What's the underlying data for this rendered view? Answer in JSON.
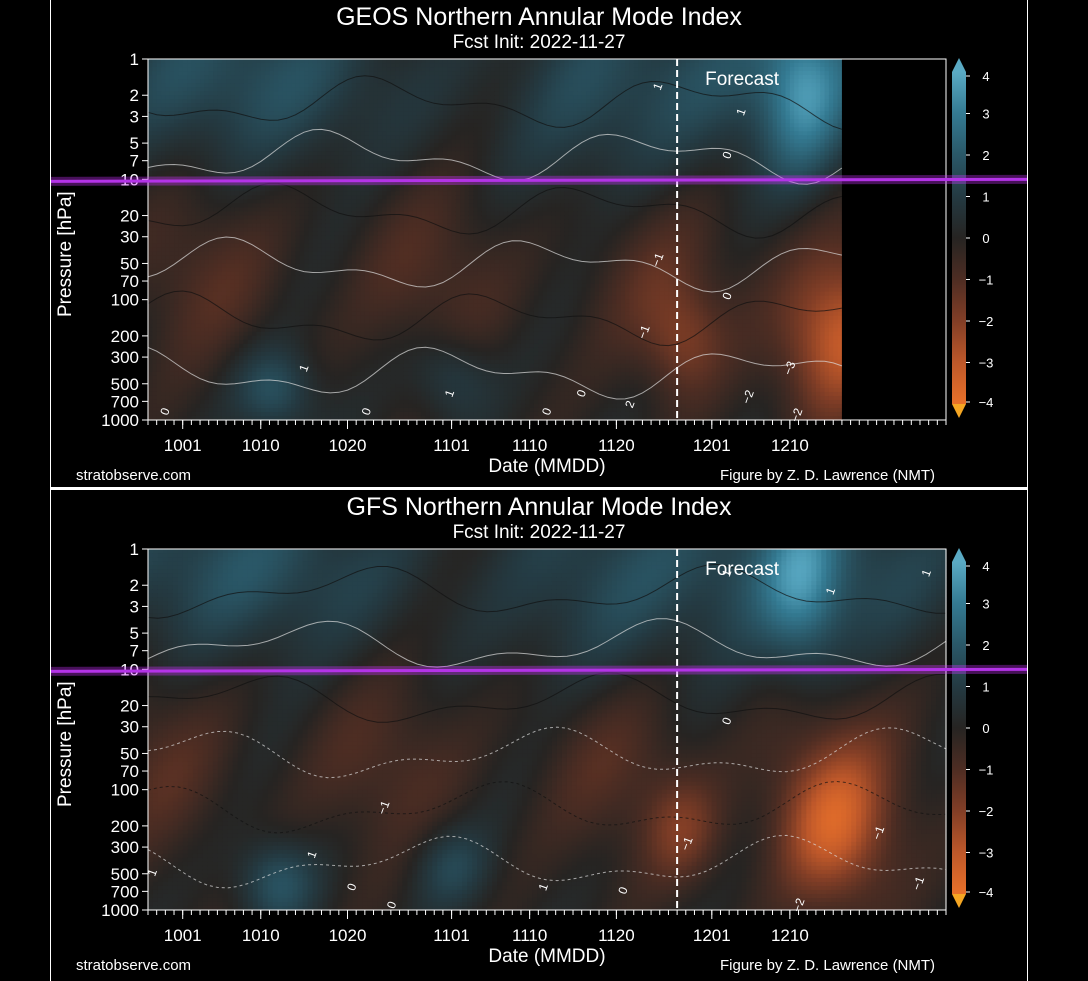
{
  "chart_data": [
    {
      "type": "heatmap",
      "title": "GEOS Northern Annular Mode Index",
      "subtitle": "Fcst Init: 2022-11-27",
      "xlabel": "Date (MMDD)",
      "ylabel": "Pressure [hPa]",
      "y_scale": "log",
      "y_reversed": true,
      "y_ticks": [
        "1",
        "2",
        "3",
        "5",
        "7",
        "10",
        "20",
        "30",
        "50",
        "70",
        "100",
        "200",
        "300",
        "500",
        "700",
        "1000"
      ],
      "x_ticks": [
        "1001",
        "1010",
        "1020",
        "1101",
        "1110",
        "1120",
        "1201",
        "1210"
      ],
      "forecast_label": "Forecast",
      "forecast_start": "1127",
      "colorbar_ticks": [
        "4",
        "3",
        "2",
        "1",
        "0",
        "−1",
        "−2",
        "−3",
        "−4"
      ],
      "colorbar_range": [
        -4,
        4
      ],
      "contour_labels": [
        "1",
        "0",
        "1",
        "0",
        "−1",
        "0",
        "1",
        "2",
        "0",
        "1",
        "0",
        "0",
        "−1",
        "−2",
        "−3",
        "−2"
      ],
      "left_credit": "stratobserve.com",
      "right_credit": "Figure by Z. D. Lawrence (NMT)",
      "highlight_level": "10"
    },
    {
      "type": "heatmap",
      "title": "GFS Northern Annular Mode Index",
      "subtitle": "Fcst Init: 2022-11-27",
      "xlabel": "Date (MMDD)",
      "ylabel": "Pressure [hPa]",
      "y_scale": "log",
      "y_reversed": true,
      "y_ticks": [
        "1",
        "2",
        "3",
        "5",
        "7",
        "10",
        "20",
        "30",
        "50",
        "70",
        "100",
        "200",
        "300",
        "500",
        "700",
        "1000"
      ],
      "x_ticks": [
        "1001",
        "1010",
        "1020",
        "1101",
        "1110",
        "1120",
        "1201",
        "1210"
      ],
      "forecast_label": "Forecast",
      "forecast_start": "1127",
      "colorbar_ticks": [
        "4",
        "3",
        "2",
        "1",
        "0",
        "−1",
        "−2",
        "−3",
        "−4"
      ],
      "colorbar_range": [
        -4,
        4
      ],
      "contour_labels": [
        "1",
        "1",
        "1",
        "0",
        "−1",
        "1",
        "0",
        "0",
        "1",
        "0",
        "−1",
        "−1",
        "−2",
        "−1",
        "1"
      ],
      "left_credit": "stratobserve.com",
      "right_credit": "Figure by Z. D. Lawrence (NMT)",
      "highlight_level": "10"
    }
  ]
}
